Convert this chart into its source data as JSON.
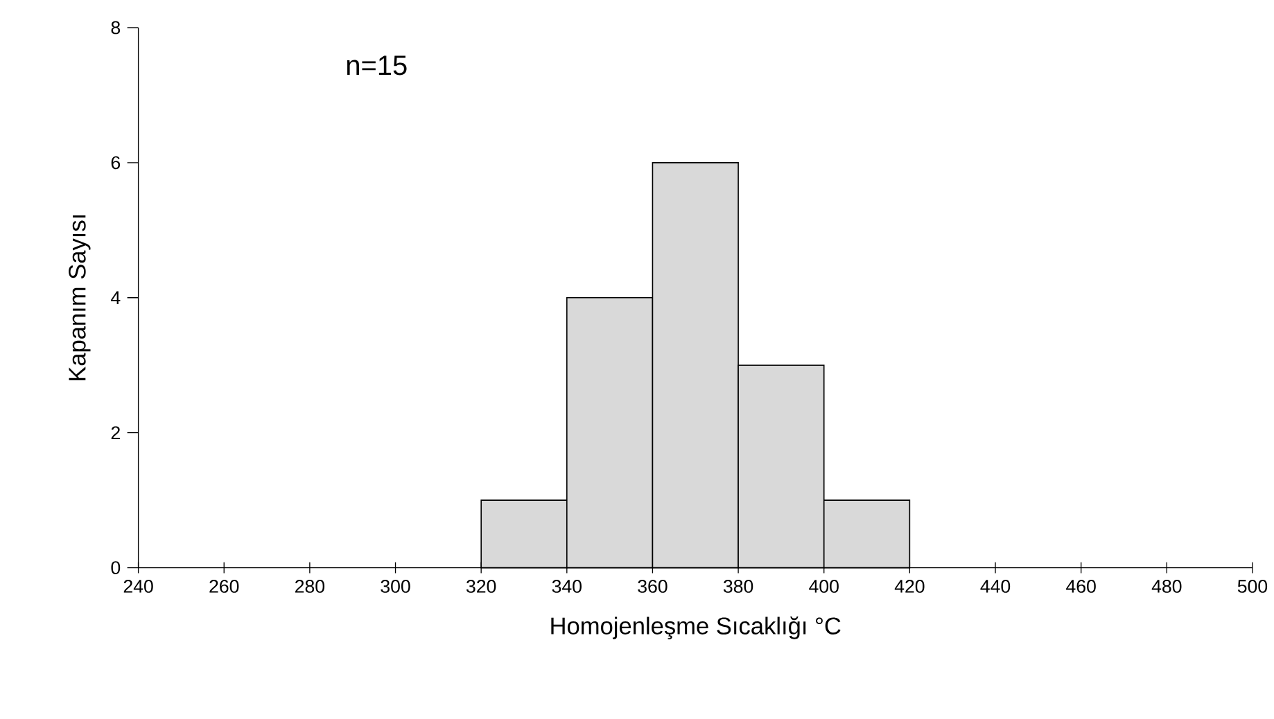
{
  "chart_data": {
    "type": "histogram",
    "xlabel": "Homojenleşme Sıcaklığı °C",
    "ylabel": "Kapanım Sayısı",
    "annotations": [
      "n=15"
    ],
    "bins": [
      320,
      340,
      360,
      380,
      400,
      420
    ],
    "values": [
      1,
      4,
      6,
      3,
      1
    ],
    "color": "#d9d9d9",
    "xlim": [
      240,
      500
    ],
    "xticks": [
      240,
      260,
      280,
      300,
      320,
      340,
      360,
      380,
      400,
      420,
      440,
      460,
      480,
      500
    ],
    "ylim": [
      0,
      8
    ],
    "yticks": [
      0,
      2,
      4,
      6,
      8
    ],
    "grid": false
  }
}
